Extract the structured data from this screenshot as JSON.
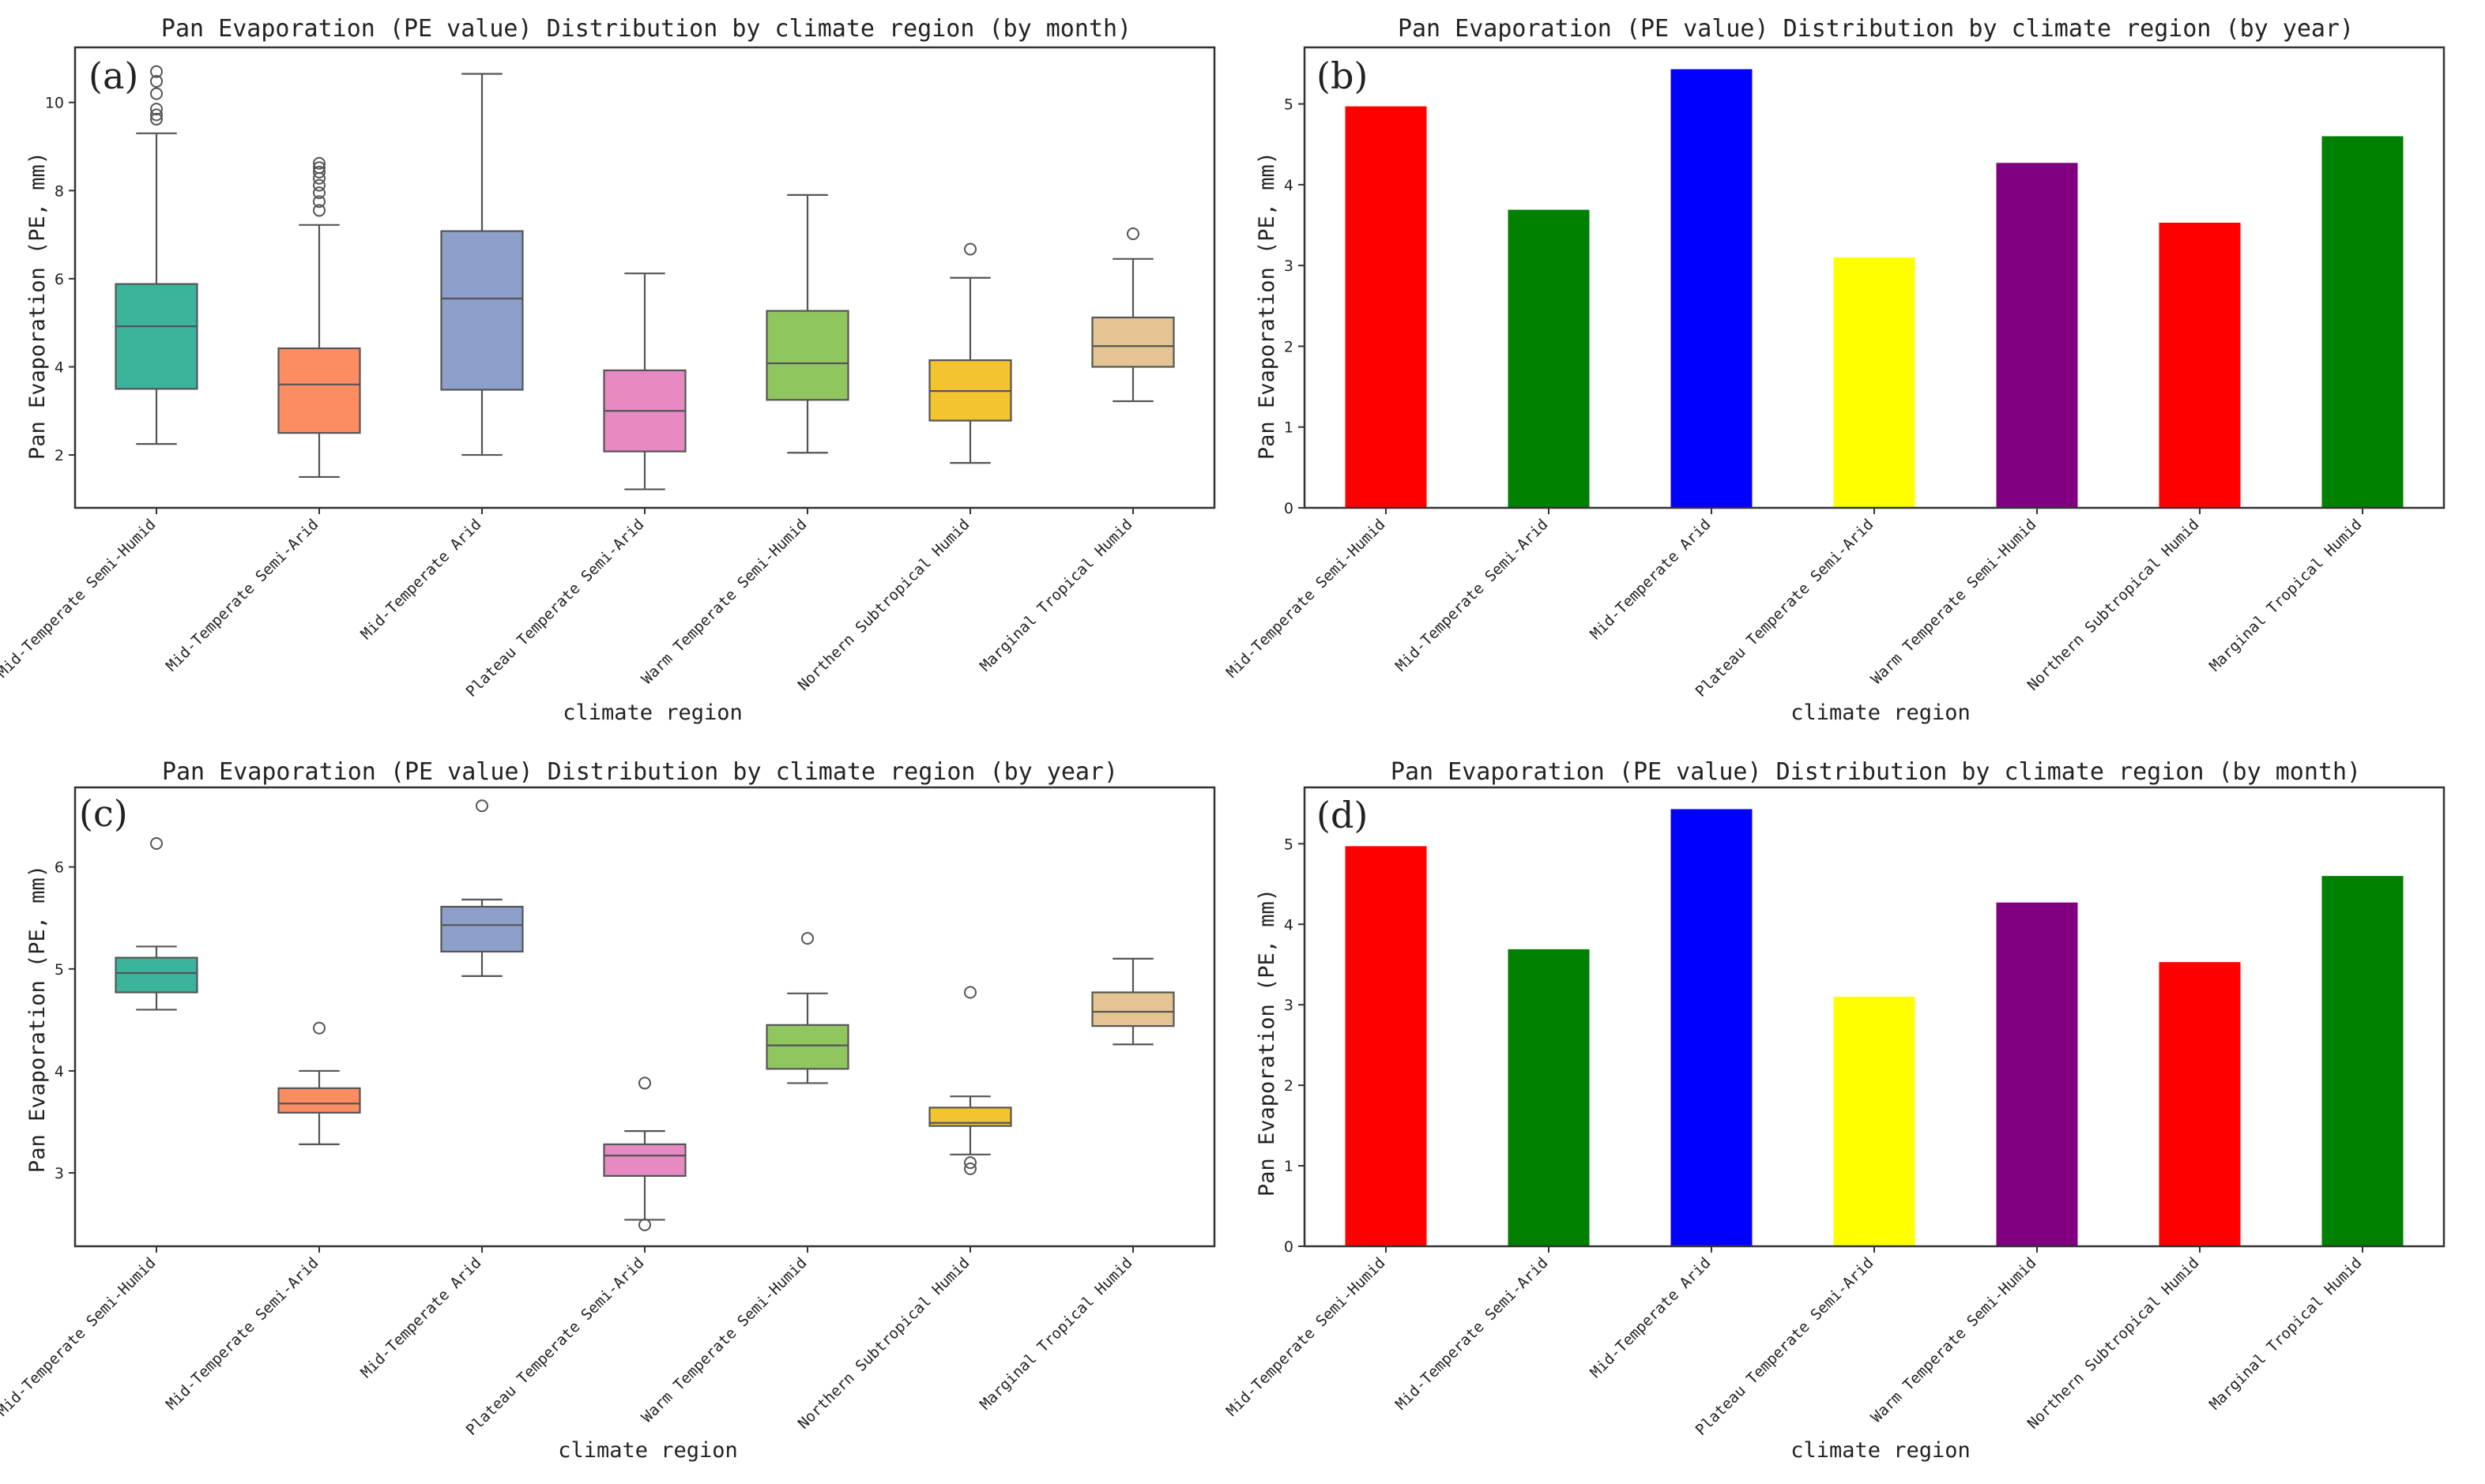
{
  "regions": [
    "Mid-Temperate Semi-Humid",
    "Mid-Temperate Semi-Arid",
    "Mid-Temperate Arid",
    "Plateau Temperate Semi-Arid",
    "Warm Temperate Semi-Humid",
    "Northern Subtropical Humid",
    "Marginal Tropical Humid"
  ],
  "chart_data": [
    {
      "panel": "(a)",
      "type": "box",
      "title": "Pan Evaporation (PE value) Distribution by climate region (by month)",
      "xlabel": "climate region",
      "ylabel": "Pan Evaporation (PE, mm)",
      "ylim": [
        0.8,
        11.25
      ],
      "yticks": [
        2,
        4,
        6,
        8,
        10
      ],
      "categories": [
        "Mid-Temperate Semi-Humid",
        "Mid-Temperate Semi-Arid",
        "Mid-Temperate Arid",
        "Plateau Temperate Semi-Arid",
        "Warm Temperate Semi-Humid",
        "Northern Subtropical Humid",
        "Marginal Tropical Humid"
      ],
      "colors": [
        "#3bb49b",
        "#fc8d62",
        "#8da0cb",
        "#e78ac3",
        "#8fc65d",
        "#f4c430",
        "#e5c494"
      ],
      "boxes": [
        {
          "whislo": 2.25,
          "q1": 3.5,
          "med": 4.92,
          "q3": 5.88,
          "whishi": 9.3,
          "fliers": [
            9.62,
            9.72,
            9.85,
            10.2,
            10.48,
            10.7
          ]
        },
        {
          "whislo": 1.5,
          "q1": 2.5,
          "med": 3.6,
          "q3": 4.42,
          "whishi": 7.22,
          "fliers": [
            7.55,
            7.75,
            7.95,
            8.12,
            8.28,
            8.42,
            8.52,
            8.62
          ]
        },
        {
          "whislo": 2.0,
          "q1": 3.48,
          "med": 5.55,
          "q3": 7.08,
          "whishi": 10.65,
          "fliers": []
        },
        {
          "whislo": 1.22,
          "q1": 2.08,
          "med": 3.0,
          "q3": 3.92,
          "whishi": 6.12,
          "fliers": []
        },
        {
          "whislo": 2.05,
          "q1": 3.25,
          "med": 4.08,
          "q3": 5.27,
          "whishi": 7.9,
          "fliers": []
        },
        {
          "whislo": 1.82,
          "q1": 2.78,
          "med": 3.45,
          "q3": 4.15,
          "whishi": 6.02,
          "fliers": [
            6.67
          ]
        },
        {
          "whislo": 3.22,
          "q1": 4.0,
          "med": 4.47,
          "q3": 5.12,
          "whishi": 6.45,
          "fliers": [
            7.02
          ]
        }
      ]
    },
    {
      "panel": "(b)",
      "type": "bar",
      "title": "Pan Evaporation (PE value) Distribution by climate region (by year)",
      "xlabel": "climate region",
      "ylabel": "Pan Evaporation (PE, mm)",
      "ylim": [
        0,
        5.7
      ],
      "yticks": [
        0,
        1,
        2,
        3,
        4,
        5
      ],
      "categories": [
        "Mid-Temperate Semi-Humid",
        "Mid-Temperate Semi-Arid",
        "Mid-Temperate Arid",
        "Plateau Temperate Semi-Arid",
        "Warm Temperate Semi-Humid",
        "Northern Subtropical Humid",
        "Marginal Tropical Humid"
      ],
      "values": [
        4.97,
        3.69,
        5.43,
        3.1,
        4.27,
        3.53,
        4.6
      ],
      "colors": [
        "#ff0000",
        "#008000",
        "#0000ff",
        "#ffff00",
        "#800080",
        "#ff0000",
        "#008000"
      ]
    },
    {
      "panel": "(c)",
      "type": "box",
      "title": "Pan Evaporation (PE value) Distribution by climate region (by year)",
      "xlabel": "climate region",
      "ylabel": "Pan Evaporation (PE, mm)",
      "ylim": [
        2.28,
        6.78
      ],
      "yticks": [
        3,
        4,
        5,
        6
      ],
      "categories": [
        "Mid-Temperate Semi-Humid",
        "Mid-Temperate Semi-Arid",
        "Mid-Temperate Arid",
        "Plateau Temperate Semi-Arid",
        "Warm Temperate Semi-Humid",
        "Northern Subtropical Humid",
        "Marginal Tropical Humid"
      ],
      "colors": [
        "#3bb49b",
        "#fc8d62",
        "#8da0cb",
        "#e78ac3",
        "#8fc65d",
        "#f4c430",
        "#e5c494"
      ],
      "boxes": [
        {
          "whislo": 4.6,
          "q1": 4.77,
          "med": 4.96,
          "q3": 5.11,
          "whishi": 5.22,
          "fliers": [
            6.23
          ]
        },
        {
          "whislo": 3.28,
          "q1": 3.59,
          "med": 3.68,
          "q3": 3.83,
          "whishi": 4.0,
          "fliers": [
            4.42
          ]
        },
        {
          "whislo": 4.93,
          "q1": 5.17,
          "med": 5.43,
          "q3": 5.61,
          "whishi": 5.68,
          "fliers": [
            6.6
          ]
        },
        {
          "whislo": 2.54,
          "q1": 2.97,
          "med": 3.17,
          "q3": 3.28,
          "whishi": 3.41,
          "fliers": [
            3.88,
            2.49
          ]
        },
        {
          "whislo": 3.88,
          "q1": 4.02,
          "med": 4.25,
          "q3": 4.45,
          "whishi": 4.76,
          "fliers": [
            5.3
          ]
        },
        {
          "whislo": 3.18,
          "q1": 3.46,
          "med": 3.49,
          "q3": 3.64,
          "whishi": 3.75,
          "fliers": [
            4.77,
            3.1,
            3.04
          ]
        },
        {
          "whislo": 4.26,
          "q1": 4.44,
          "med": 4.58,
          "q3": 4.77,
          "whishi": 5.1,
          "fliers": []
        }
      ]
    },
    {
      "panel": "(d)",
      "type": "bar",
      "title": "Pan Evaporation (PE value) Distribution by climate region (by month)",
      "xlabel": "climate region",
      "ylabel": "Pan Evaporation (PE, mm)",
      "ylim": [
        0,
        5.7
      ],
      "yticks": [
        0,
        1,
        2,
        3,
        4,
        5
      ],
      "categories": [
        "Mid-Temperate Semi-Humid",
        "Mid-Temperate Semi-Arid",
        "Mid-Temperate Arid",
        "Plateau Temperate Semi-Arid",
        "Warm Temperate Semi-Humid",
        "Northern Subtropical Humid",
        "Marginal Tropical Humid"
      ],
      "values": [
        4.97,
        3.69,
        5.43,
        3.1,
        4.27,
        3.53,
        4.6
      ],
      "colors": [
        "#ff0000",
        "#008000",
        "#0000ff",
        "#ffff00",
        "#800080",
        "#ff0000",
        "#008000"
      ]
    }
  ]
}
